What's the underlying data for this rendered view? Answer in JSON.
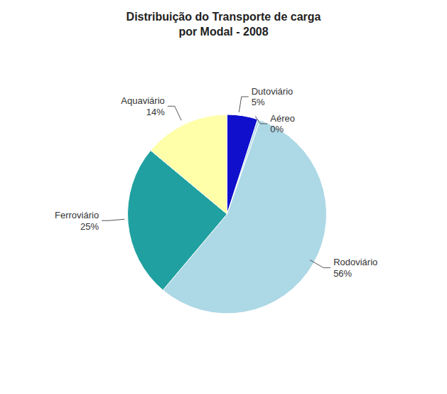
{
  "chart_data": {
    "type": "pie",
    "title": "Distribuição do Transporte de carga\npor Modal - 2008",
    "categories": [
      "Dutoviário",
      "Aéreo",
      "Rodoviário",
      "Ferroviário",
      "Aquaviário"
    ],
    "values": [
      5,
      0.4,
      56,
      25,
      14
    ],
    "value_labels": [
      "5%",
      "0%",
      "56%",
      "25%",
      "14%"
    ],
    "colors": [
      "#1010CC",
      "#ADD8E6",
      "#ADD8E6",
      "#20A0A0",
      "#FFFFAA"
    ],
    "data_labels": true
  }
}
